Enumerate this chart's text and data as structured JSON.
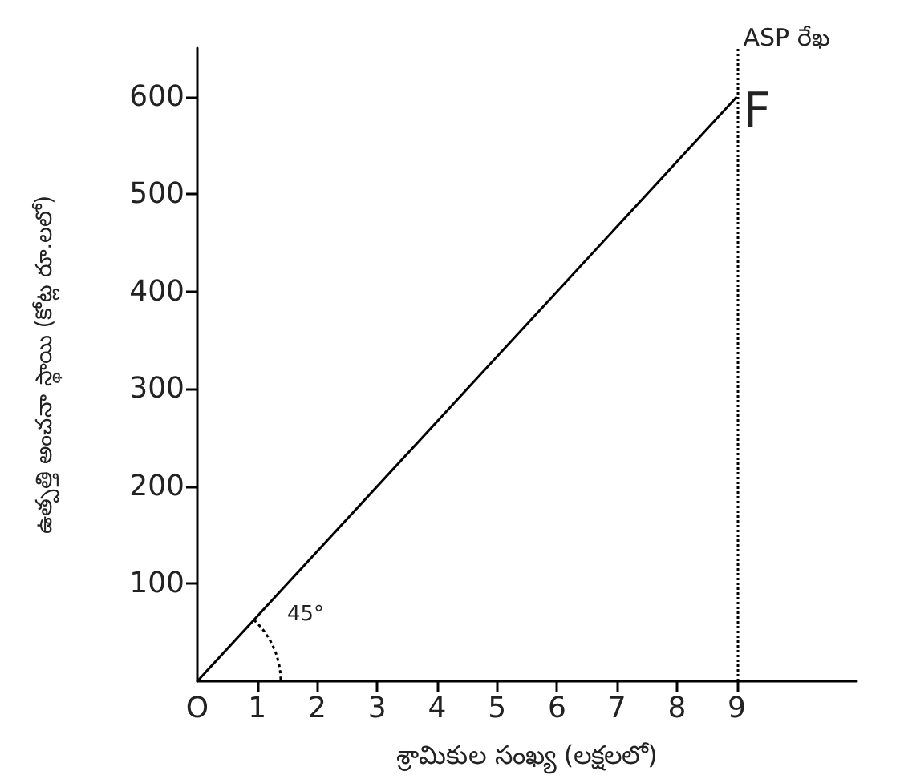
{
  "chart_data": {
    "type": "line",
    "xlabel": "శ్రామికుల సంఖ్య (లక్షలలో)",
    "ylabel": "ఉత్పత్తి అంచనా స్థాయి (కోట్ల రూ.లలో)",
    "x": [
      0,
      9
    ],
    "series": [
      {
        "color": "#000000",
        "values": [
          0,
          600
        ]
      }
    ],
    "xlim": [
      0,
      11
    ],
    "xticks": [
      {
        "value": 0,
        "label": "O"
      },
      1,
      2,
      3,
      4,
      5,
      6,
      7,
      8,
      9
    ],
    "ylim": [
      0,
      650
    ],
    "yticks": [
      100,
      200,
      300,
      400,
      500,
      600
    ],
    "ref_lines": [
      {
        "axis": "x",
        "value": 9,
        "label": "ASP రేఖ",
        "color": "#000000",
        "line_style": "dotted"
      }
    ],
    "annotations": [
      {
        "text": "F",
        "x": 9,
        "y": 600
      },
      "45°"
    ],
    "marker": "none",
    "line_style": "solid",
    "grid": false
  }
}
